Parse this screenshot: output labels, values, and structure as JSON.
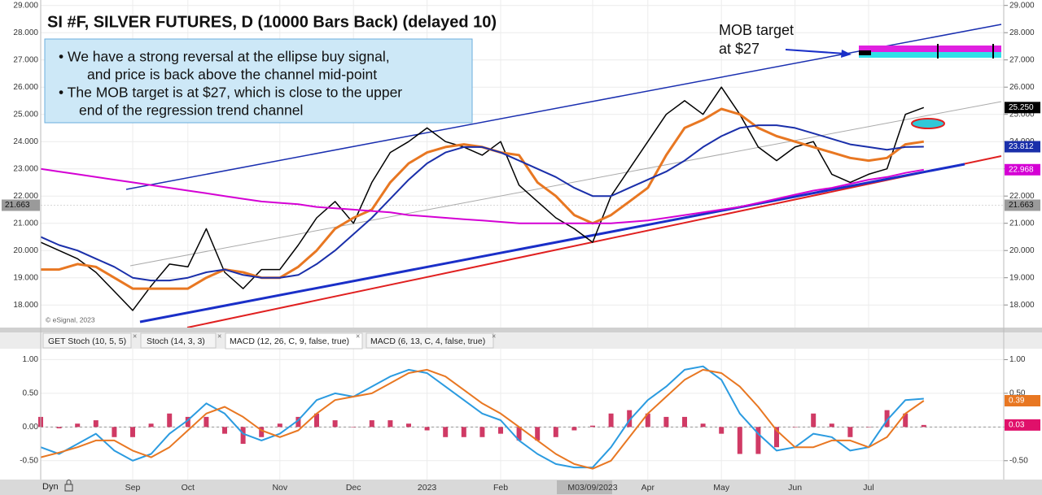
{
  "chart_data": [
    {
      "type": "line",
      "title": "SI #F, SILVER FUTURES, D (10000 Bars Back) (delayed 10)",
      "annotations": {
        "text_box": [
          "•  We have a strong reversal at the ellipse buy signal,",
          "and price is back above the channel mid-point",
          "• The MOB target is at $27, which is close to the upper",
          "end of the regression trend channel"
        ],
        "mob_target": [
          "MOB target",
          "at $27"
        ],
        "copyright": "© eSignal, 2023"
      },
      "ylim": [
        17.2,
        29.2
      ],
      "yticks": [
        {
          "value": 18,
          "label": "18.000"
        },
        {
          "value": 19,
          "label": "19.000"
        },
        {
          "value": 20,
          "label": "20.000"
        },
        {
          "value": 21,
          "label": "21.000"
        },
        {
          "value": 22,
          "label": "22.000"
        },
        {
          "value": 23,
          "label": "23.000"
        },
        {
          "value": 24,
          "label": "24.000"
        },
        {
          "value": 25,
          "label": "25.000"
        },
        {
          "value": 26,
          "label": "26.000"
        },
        {
          "value": 27,
          "label": "27.000"
        },
        {
          "value": 28,
          "label": "28.000"
        },
        {
          "value": 29,
          "label": "29.000"
        }
      ],
      "series": [
        {
          "color": "#000000",
          "width": 1.5,
          "values": [
            20.3,
            20.0,
            19.7,
            19.2,
            18.5,
            17.8,
            18.7,
            19.5,
            19.4,
            20.8,
            19.2,
            18.6,
            19.3,
            19.3,
            20.2,
            21.2,
            21.8,
            21.0,
            22.5,
            23.6,
            24.0,
            24.5,
            24.0,
            23.8,
            23.5,
            24.0,
            22.4,
            21.8,
            21.2,
            20.8,
            20.3,
            22.0,
            23.0,
            24.0,
            25.0,
            25.5,
            25.0,
            26.0,
            25.0,
            23.8,
            23.3,
            23.8,
            24.0,
            22.8,
            22.5,
            22.8,
            23.0,
            25.0,
            25.25
          ]
        },
        {
          "color": "#e87722",
          "width": 3,
          "values": [
            19.3,
            19.3,
            19.5,
            19.4,
            19.0,
            18.6,
            18.6,
            18.6,
            18.6,
            19.0,
            19.3,
            19.2,
            19.0,
            19.0,
            19.4,
            20.0,
            20.8,
            21.2,
            21.5,
            22.5,
            23.2,
            23.6,
            23.8,
            23.9,
            23.8,
            23.6,
            23.5,
            22.5,
            22.0,
            21.3,
            21.0,
            21.3,
            21.8,
            22.3,
            23.5,
            24.5,
            24.8,
            25.2,
            25.0,
            24.5,
            24.2,
            24.0,
            23.8,
            23.6,
            23.4,
            23.3,
            23.4,
            23.9,
            24.0
          ]
        },
        {
          "color": "#1a2faa",
          "width": 2,
          "values": [
            20.5,
            20.2,
            20.0,
            19.7,
            19.4,
            19.0,
            18.9,
            18.9,
            19.0,
            19.2,
            19.3,
            19.1,
            19.0,
            19.0,
            19.1,
            19.5,
            20.0,
            20.6,
            21.2,
            21.9,
            22.6,
            23.2,
            23.6,
            23.8,
            23.8,
            23.6,
            23.3,
            23.0,
            22.7,
            22.3,
            22.0,
            22.0,
            22.3,
            22.6,
            22.9,
            23.3,
            23.8,
            24.2,
            24.5,
            24.6,
            24.6,
            24.5,
            24.3,
            24.1,
            23.9,
            23.8,
            23.7,
            23.8,
            23.812
          ]
        },
        {
          "color": "#d400d4",
          "width": 2,
          "values": [
            23.0,
            22.9,
            22.8,
            22.7,
            22.6,
            22.5,
            22.4,
            22.3,
            22.2,
            22.1,
            22.0,
            21.9,
            21.8,
            21.75,
            21.7,
            21.6,
            21.55,
            21.5,
            21.45,
            21.4,
            21.3,
            21.25,
            21.2,
            21.15,
            21.1,
            21.05,
            21.0,
            21.0,
            21.0,
            21.0,
            21.0,
            21.0,
            21.05,
            21.1,
            21.2,
            21.3,
            21.4,
            21.5,
            21.6,
            21.75,
            21.9,
            22.05,
            22.2,
            22.3,
            22.45,
            22.6,
            22.7,
            22.85,
            22.968
          ]
        }
      ],
      "price_tags": [
        {
          "value": 25.25,
          "label": "25.250",
          "color": "#000000"
        },
        {
          "value": 23.812,
          "label": "23.812",
          "color": "#1a2faa"
        },
        {
          "value": 22.968,
          "label": "22.968",
          "color": "#d400d4"
        },
        {
          "value": 21.663,
          "label": "21.663",
          "color": "#9a9a9a"
        }
      ]
    },
    {
      "type": "line",
      "tabs": [
        "GET Stoch (10, 5, 5)",
        "Stoch (14, 3, 3)",
        "MACD (12, 26, C, 9, false, true)",
        "MACD (6, 13, C, 4, false, true)"
      ],
      "axis_label": "Dyn",
      "categories": [
        null,
        null,
        null,
        null,
        null,
        "Sep",
        null,
        null,
        "Oct",
        null,
        null,
        null,
        null,
        "Nov",
        null,
        null,
        null,
        "Dec",
        null,
        null,
        null,
        "2023",
        null,
        null,
        null,
        "Feb",
        null,
        null,
        null,
        null,
        "M03/09/2023",
        null,
        null,
        "Apr",
        null,
        null,
        null,
        "May",
        null,
        null,
        null,
        "Jun",
        null,
        null,
        null,
        "Jul",
        null,
        null,
        null
      ],
      "ylim": [
        -0.78,
        1.15
      ],
      "yticks": [
        {
          "value": -0.5,
          "label": "-0.50"
        },
        {
          "value": 0,
          "label": "0.00"
        },
        {
          "value": 0.5,
          "label": "0.50"
        },
        {
          "value": 1,
          "label": "1.00"
        }
      ],
      "series": [
        {
          "kind": "bar",
          "color": "#c8184a",
          "values": [
            0.15,
            -0.02,
            0.05,
            0.1,
            -0.15,
            -0.15,
            0.05,
            0.2,
            0.15,
            0.15,
            -0.1,
            -0.25,
            -0.15,
            0.05,
            0.15,
            0.2,
            0.1,
            0,
            0.1,
            0.1,
            0.05,
            -0.05,
            -0.15,
            -0.15,
            -0.15,
            -0.1,
            -0.2,
            -0.2,
            -0.15,
            -0.05,
            0.02,
            0.2,
            0.25,
            0.2,
            0.15,
            0.15,
            0.05,
            -0.1,
            -0.4,
            -0.4,
            -0.3,
            0,
            0.2,
            0.05,
            -0.15,
            0,
            0.25,
            0.2,
            0.03
          ]
        },
        {
          "kind": "line",
          "color": "#2b9be0",
          "values": [
            -0.3,
            -0.4,
            -0.25,
            -0.1,
            -0.35,
            -0.5,
            -0.4,
            -0.1,
            0.1,
            0.35,
            0.2,
            -0.1,
            -0.2,
            -0.1,
            0.1,
            0.4,
            0.5,
            0.45,
            0.6,
            0.75,
            0.85,
            0.8,
            0.6,
            0.4,
            0.2,
            0.1,
            -0.2,
            -0.4,
            -0.55,
            -0.6,
            -0.6,
            -0.3,
            0.1,
            0.4,
            0.6,
            0.85,
            0.9,
            0.7,
            0.2,
            -0.1,
            -0.35,
            -0.3,
            -0.1,
            -0.15,
            -0.35,
            -0.3,
            0.1,
            0.4,
            0.42
          ]
        },
        {
          "kind": "line",
          "color": "#e87722",
          "values": [
            -0.45,
            -0.38,
            -0.3,
            -0.2,
            -0.2,
            -0.35,
            -0.45,
            -0.3,
            -0.05,
            0.2,
            0.3,
            0.15,
            -0.05,
            -0.15,
            -0.05,
            0.2,
            0.4,
            0.45,
            0.5,
            0.65,
            0.8,
            0.85,
            0.75,
            0.55,
            0.35,
            0.2,
            0.0,
            -0.2,
            -0.4,
            -0.55,
            -0.62,
            -0.5,
            -0.15,
            0.2,
            0.45,
            0.7,
            0.85,
            0.8,
            0.6,
            0.3,
            -0.05,
            -0.3,
            -0.3,
            -0.2,
            -0.2,
            -0.3,
            -0.15,
            0.2,
            0.39
          ]
        }
      ],
      "value_tags": [
        {
          "value": 0.39,
          "label": "0.39",
          "color": "#e87722"
        },
        {
          "value": 0.03,
          "label": "0.03",
          "color": "#e0106a"
        }
      ]
    }
  ]
}
